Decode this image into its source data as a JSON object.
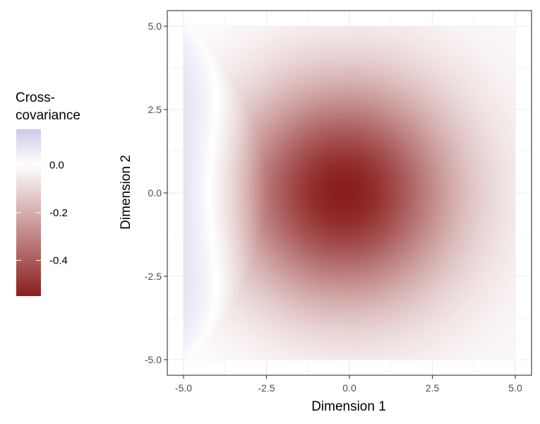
{
  "chart_data": {
    "type": "heatmap",
    "title": "",
    "xlabel": "Dimension 1",
    "ylabel": "Dimension 2",
    "xlim": [
      -5,
      5
    ],
    "ylim": [
      -5,
      5
    ],
    "x_ticks": [
      -5.0,
      -2.5,
      0.0,
      2.5,
      5.0
    ],
    "y_ticks": [
      -5.0,
      -2.5,
      0.0,
      2.5,
      5.0
    ],
    "x_tick_labels": [
      "-5.0",
      "-2.5",
      "0.0",
      "2.5",
      "5.0"
    ],
    "y_tick_labels": [
      "-5.0",
      "-2.5",
      "0.0",
      "2.5",
      "5.0"
    ],
    "grid": true,
    "legend": {
      "title_lines": [
        "Cross-",
        "covariance"
      ],
      "placement": "left",
      "min": -0.55,
      "max": 0.15,
      "ticks": [
        0.0,
        -0.2,
        -0.4
      ],
      "tick_labels": [
        "0.0",
        "-0.2",
        "-0.4"
      ]
    },
    "colors": {
      "low": "#8b1e1e",
      "mid": "#ffffff",
      "high": "#cdc8e8",
      "panel_border": "#333333",
      "grid": "#ebebeb"
    },
    "field": {
      "minimum_value": -0.55,
      "minimum_at": [
        -0.2,
        0.0
      ],
      "maximum_value": 0.15,
      "maximum_at": [
        -5.0,
        0.0
      ],
      "zero_contour_crosses_x_axis_at": -2.5
    }
  }
}
